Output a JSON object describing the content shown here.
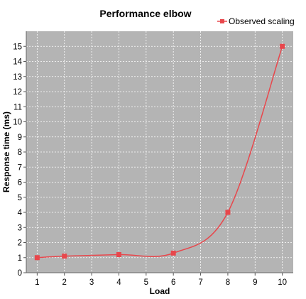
{
  "chart_data": {
    "type": "line",
    "title": "Performance elbow",
    "xlabel": "Load",
    "ylabel": "Response time (ms)",
    "x_ticks": [
      1,
      2,
      3,
      4,
      5,
      6,
      7,
      8,
      9,
      10
    ],
    "y_ticks": [
      0,
      1,
      2,
      3,
      4,
      5,
      6,
      7,
      8,
      9,
      10,
      11,
      12,
      13,
      14,
      15
    ],
    "xlim": [
      0.6,
      10.4
    ],
    "ylim": [
      0,
      16
    ],
    "grid": true,
    "legend_position": "top-right",
    "series": [
      {
        "name": "Observed scaling",
        "color": "#e8474c",
        "marker": "square",
        "points": [
          {
            "x": 1,
            "y": 1.0
          },
          {
            "x": 2,
            "y": 1.1
          },
          {
            "x": 4,
            "y": 1.2
          },
          {
            "x": 6,
            "y": 1.3
          },
          {
            "x": 8,
            "y": 4.0
          },
          {
            "x": 10,
            "y": 15.0
          }
        ]
      }
    ]
  },
  "colors": {
    "plot_background": "#b4b4b4",
    "gridline": "#ffffff",
    "series_line": "#e8474c",
    "series_marker": "#e8474c"
  }
}
